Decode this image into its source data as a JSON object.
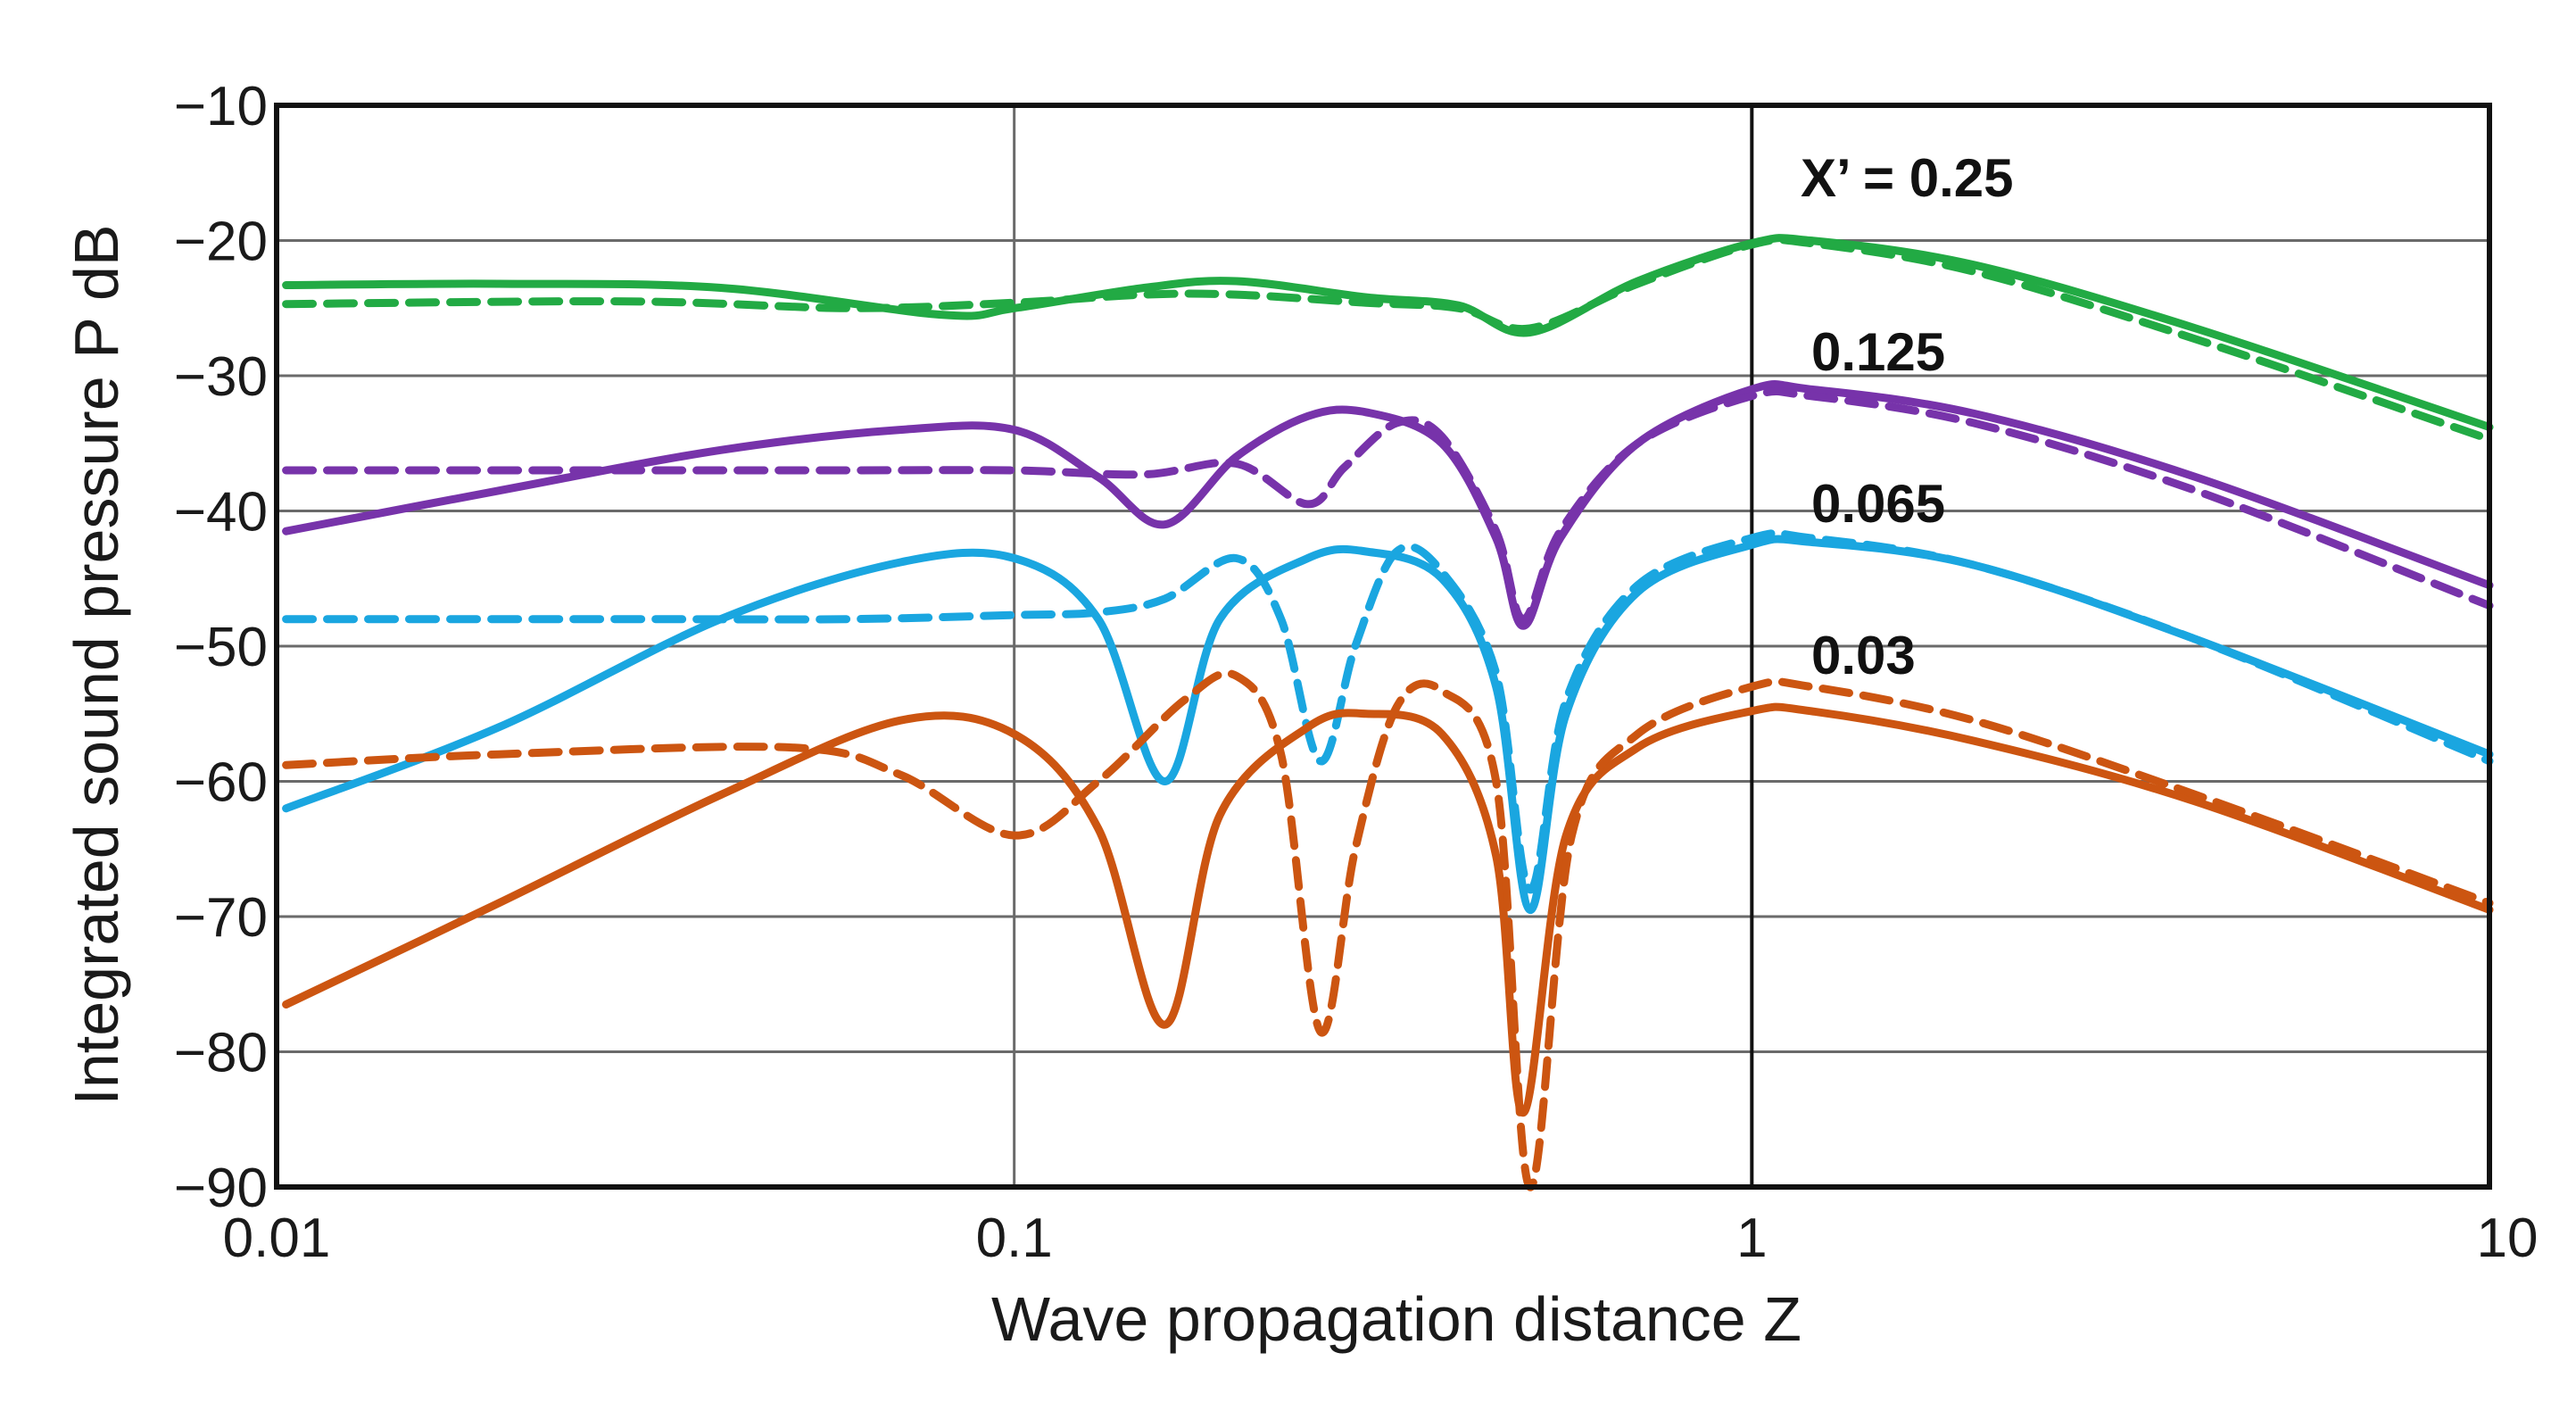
{
  "chart_data": {
    "type": "line",
    "title": "",
    "xlabel": "Wave propagation distance  Z",
    "ylabel": "Integrated sound pressure  P  dB",
    "xscale": "log",
    "xlim": [
      0.01,
      10
    ],
    "ylim": [
      -90,
      -10
    ],
    "x_ticks": [
      "0.01",
      "0.1",
      "1",
      "10"
    ],
    "x_tick_values": [
      0.01,
      0.1,
      1,
      10
    ],
    "y_ticks": [
      "−10",
      "−20",
      "−30",
      "−40",
      "−50",
      "−60",
      "−70",
      "−80",
      "−90"
    ],
    "y_tick_values": [
      -10,
      -20,
      -30,
      -40,
      -50,
      -60,
      -70,
      -80,
      -90
    ],
    "grid": true,
    "legend": "none",
    "annotations": [
      {
        "text": "X’ = 0.25",
        "series_group": "green"
      },
      {
        "text": "0.125",
        "series_group": "purple"
      },
      {
        "text": "0.065",
        "series_group": "blue"
      },
      {
        "text": "0.03",
        "series_group": "orange"
      }
    ],
    "series": [
      {
        "name": "X’ = 0.25 (solid)",
        "color": "#22aa44",
        "style": "solid",
        "points": [
          [
            0.0103,
            -23.3
          ],
          [
            0.02,
            -23.2
          ],
          [
            0.04,
            -23.5
          ],
          [
            0.08,
            -25.5
          ],
          [
            0.1,
            -25.0
          ],
          [
            0.15,
            -23.5
          ],
          [
            0.2,
            -23.0
          ],
          [
            0.3,
            -24.2
          ],
          [
            0.4,
            -24.8
          ],
          [
            0.5,
            -26.8
          ],
          [
            0.7,
            -23.0
          ],
          [
            1.0,
            -20.2
          ],
          [
            1.2,
            -20.0
          ],
          [
            2.0,
            -21.8
          ],
          [
            4.0,
            -26.5
          ],
          [
            10.0,
            -33.8
          ]
        ]
      },
      {
        "name": "X’ = 0.25 (dashed)",
        "color": "#22aa44",
        "style": "dashed",
        "points": [
          [
            0.0103,
            -24.7
          ],
          [
            0.03,
            -24.5
          ],
          [
            0.06,
            -25.0
          ],
          [
            0.1,
            -24.6
          ],
          [
            0.15,
            -24.0
          ],
          [
            0.2,
            -24.0
          ],
          [
            0.3,
            -24.6
          ],
          [
            0.4,
            -25.0
          ],
          [
            0.5,
            -26.5
          ],
          [
            0.7,
            -23.2
          ],
          [
            1.0,
            -20.3
          ],
          [
            1.2,
            -20.2
          ],
          [
            2.0,
            -22.3
          ],
          [
            4.0,
            -27.3
          ],
          [
            10.0,
            -34.7
          ]
        ]
      },
      {
        "name": "0.125 (solid)",
        "color": "#7733aa",
        "style": "solid",
        "points": [
          [
            0.0103,
            -41.5
          ],
          [
            0.02,
            -38.5
          ],
          [
            0.04,
            -35.5
          ],
          [
            0.07,
            -34.0
          ],
          [
            0.1,
            -34.0
          ],
          [
            0.13,
            -37.5
          ],
          [
            0.16,
            -41.0
          ],
          [
            0.2,
            -36.0
          ],
          [
            0.25,
            -33.0
          ],
          [
            0.3,
            -32.7
          ],
          [
            0.38,
            -35.0
          ],
          [
            0.45,
            -42.0
          ],
          [
            0.49,
            -48.5
          ],
          [
            0.55,
            -42.0
          ],
          [
            0.7,
            -35.0
          ],
          [
            1.0,
            -31.0
          ],
          [
            1.2,
            -31.0
          ],
          [
            2.0,
            -32.8
          ],
          [
            4.0,
            -37.5
          ],
          [
            10.0,
            -45.5
          ]
        ]
      },
      {
        "name": "0.125 (dashed)",
        "color": "#7733aa",
        "style": "dashed",
        "points": [
          [
            0.0103,
            -37.0
          ],
          [
            0.03,
            -37.0
          ],
          [
            0.06,
            -37.0
          ],
          [
            0.1,
            -37.0
          ],
          [
            0.15,
            -37.3
          ],
          [
            0.2,
            -36.5
          ],
          [
            0.25,
            -39.5
          ],
          [
            0.28,
            -36.8
          ],
          [
            0.33,
            -33.5
          ],
          [
            0.38,
            -34.5
          ],
          [
            0.45,
            -41.5
          ],
          [
            0.49,
            -48.0
          ],
          [
            0.55,
            -41.5
          ],
          [
            0.7,
            -35.0
          ],
          [
            1.0,
            -31.5
          ],
          [
            1.2,
            -31.5
          ],
          [
            2.0,
            -33.5
          ],
          [
            4.0,
            -38.5
          ],
          [
            10.0,
            -47.0
          ]
        ]
      },
      {
        "name": "0.065 (solid)",
        "color": "#1aa6e0",
        "style": "solid",
        "points": [
          [
            0.0103,
            -62.0
          ],
          [
            0.02,
            -56.0
          ],
          [
            0.04,
            -48.0
          ],
          [
            0.07,
            -43.8
          ],
          [
            0.1,
            -43.5
          ],
          [
            0.13,
            -48.0
          ],
          [
            0.16,
            -60.0
          ],
          [
            0.19,
            -48.0
          ],
          [
            0.25,
            -43.5
          ],
          [
            0.3,
            -43.0
          ],
          [
            0.38,
            -45.0
          ],
          [
            0.45,
            -53.0
          ],
          [
            0.5,
            -69.5
          ],
          [
            0.56,
            -55.0
          ],
          [
            0.7,
            -46.0
          ],
          [
            1.0,
            -42.5
          ],
          [
            1.2,
            -42.3
          ],
          [
            2.0,
            -44.0
          ],
          [
            4.0,
            -49.5
          ],
          [
            10.0,
            -58.0
          ]
        ]
      },
      {
        "name": "0.065 (dashed)",
        "color": "#1aa6e0",
        "style": "dashed",
        "points": [
          [
            0.0103,
            -48.0
          ],
          [
            0.03,
            -48.0
          ],
          [
            0.06,
            -48.0
          ],
          [
            0.1,
            -47.7
          ],
          [
            0.13,
            -47.5
          ],
          [
            0.16,
            -46.5
          ],
          [
            0.2,
            -43.5
          ],
          [
            0.23,
            -48.0
          ],
          [
            0.26,
            -58.5
          ],
          [
            0.29,
            -50.0
          ],
          [
            0.33,
            -43.0
          ],
          [
            0.38,
            -44.5
          ],
          [
            0.45,
            -52.0
          ],
          [
            0.5,
            -68.0
          ],
          [
            0.56,
            -54.0
          ],
          [
            0.7,
            -45.5
          ],
          [
            1.0,
            -42.0
          ],
          [
            1.2,
            -42.0
          ],
          [
            2.0,
            -44.0
          ],
          [
            4.0,
            -49.5
          ],
          [
            10.0,
            -58.5
          ]
        ]
      },
      {
        "name": "0.03 (solid)",
        "color": "#cc5511",
        "style": "solid",
        "points": [
          [
            0.0103,
            -76.5
          ],
          [
            0.02,
            -69.0
          ],
          [
            0.04,
            -61.0
          ],
          [
            0.07,
            -55.5
          ],
          [
            0.1,
            -56.5
          ],
          [
            0.13,
            -63.5
          ],
          [
            0.16,
            -78.0
          ],
          [
            0.19,
            -62.5
          ],
          [
            0.25,
            -56.0
          ],
          [
            0.3,
            -55.0
          ],
          [
            0.38,
            -56.5
          ],
          [
            0.45,
            -65.5
          ],
          [
            0.49,
            -84.5
          ],
          [
            0.56,
            -64.0
          ],
          [
            0.7,
            -57.5
          ],
          [
            1.0,
            -54.8
          ],
          [
            1.2,
            -54.8
          ],
          [
            2.0,
            -57.0
          ],
          [
            4.0,
            -61.5
          ],
          [
            10.0,
            -69.5
          ]
        ]
      },
      {
        "name": "0.03 (dashed)",
        "color": "#cc5511",
        "style": "dashed",
        "points": [
          [
            0.0103,
            -58.8
          ],
          [
            0.02,
            -58.0
          ],
          [
            0.05,
            -57.5
          ],
          [
            0.07,
            -59.5
          ],
          [
            0.1,
            -64.0
          ],
          [
            0.13,
            -60.0
          ],
          [
            0.17,
            -54.0
          ],
          [
            0.2,
            -52.2
          ],
          [
            0.23,
            -58.0
          ],
          [
            0.26,
            -78.5
          ],
          [
            0.29,
            -65.0
          ],
          [
            0.33,
            -54.5
          ],
          [
            0.38,
            -53.3
          ],
          [
            0.45,
            -60.0
          ],
          [
            0.5,
            -90.0
          ],
          [
            0.57,
            -64.0
          ],
          [
            0.7,
            -56.5
          ],
          [
            1.0,
            -53.0
          ],
          [
            1.2,
            -53.0
          ],
          [
            2.0,
            -55.5
          ],
          [
            4.0,
            -61.0
          ],
          [
            10.0,
            -69.0
          ]
        ]
      }
    ]
  }
}
